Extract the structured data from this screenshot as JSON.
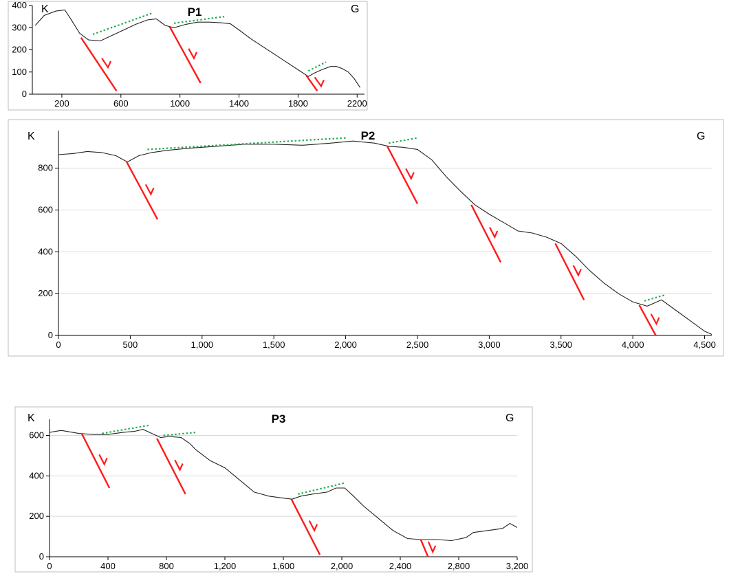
{
  "chart_data": [
    {
      "type": "line",
      "title": "P1",
      "start_label": "K",
      "end_label": "G",
      "xlim": [
        0,
        2250
      ],
      "ylim": [
        0,
        400
      ],
      "xticks": [
        200,
        600,
        1000,
        1400,
        1800,
        2200
      ],
      "yticks": [
        0,
        100,
        200,
        300,
        400
      ],
      "grid": false,
      "series": [
        {
          "x": [
            20,
            80,
            160,
            220,
            260,
            320,
            380,
            460,
            540,
            620,
            700,
            780,
            840,
            900,
            960,
            1040,
            1120,
            1200,
            1280,
            1340,
            1400,
            1480,
            1560,
            1640,
            1720,
            1800,
            1870,
            1910,
            1960,
            2020,
            2060,
            2100,
            2140,
            2180,
            2220
          ],
          "y": [
            310,
            355,
            375,
            380,
            340,
            275,
            245,
            240,
            265,
            290,
            315,
            335,
            340,
            310,
            300,
            315,
            325,
            325,
            322,
            318,
            290,
            250,
            215,
            180,
            145,
            110,
            80,
            95,
            110,
            125,
            125,
            115,
            100,
            70,
            30
          ]
        }
      ],
      "faults": [
        {
          "x1": 330,
          "y1": 255,
          "x2": 570,
          "y2": 15
        },
        {
          "x1": 930,
          "y1": 305,
          "x2": 1140,
          "y2": 50
        },
        {
          "x1": 1855,
          "y1": 85,
          "x2": 1930,
          "y2": 15
        }
      ],
      "trend_lines": [
        {
          "x1": 410,
          "y1": 270,
          "x2": 810,
          "y2": 365
        },
        {
          "x1": 960,
          "y1": 320,
          "x2": 1300,
          "y2": 350
        },
        {
          "x1": 1870,
          "y1": 105,
          "x2": 1990,
          "y2": 145
        }
      ]
    },
    {
      "type": "line",
      "title": "P2",
      "start_label": "K",
      "end_label": "G",
      "xlim": [
        0,
        4550
      ],
      "ylim": [
        0,
        980
      ],
      "xticks": [
        "0",
        "500",
        "1,000",
        "1,500",
        "2,000",
        "2,500",
        "3,000",
        "3,500",
        "4,000",
        "4,500"
      ],
      "xtick_values": [
        0,
        500,
        1000,
        1500,
        2000,
        2500,
        3000,
        3500,
        4000,
        4500
      ],
      "yticks": [
        0,
        200,
        400,
        600,
        800
      ],
      "grid": true,
      "series": [
        {
          "x": [
            0,
            100,
            200,
            300,
            400,
            480,
            560,
            650,
            750,
            900,
            1100,
            1300,
            1500,
            1700,
            1900,
            2050,
            2200,
            2300,
            2400,
            2500,
            2600,
            2700,
            2800,
            2900,
            3000,
            3100,
            3200,
            3300,
            3400,
            3500,
            3600,
            3700,
            3800,
            3900,
            4000,
            4100,
            4200,
            4300,
            4400,
            4500,
            4550
          ],
          "y": [
            865,
            870,
            880,
            875,
            860,
            830,
            860,
            875,
            885,
            895,
            905,
            915,
            915,
            910,
            920,
            930,
            920,
            905,
            900,
            890,
            840,
            760,
            690,
            625,
            580,
            540,
            500,
            490,
            470,
            440,
            380,
            310,
            250,
            200,
            160,
            140,
            170,
            120,
            70,
            20,
            5
          ]
        }
      ],
      "faults": [
        {
          "x1": 475,
          "y1": 830,
          "x2": 690,
          "y2": 555
        },
        {
          "x1": 2290,
          "y1": 905,
          "x2": 2500,
          "y2": 630
        },
        {
          "x1": 2875,
          "y1": 625,
          "x2": 3080,
          "y2": 350
        },
        {
          "x1": 3460,
          "y1": 440,
          "x2": 3660,
          "y2": 170
        },
        {
          "x1": 4045,
          "y1": 145,
          "x2": 4160,
          "y2": 0
        }
      ],
      "trend_lines": [
        {
          "x1": 620,
          "y1": 890,
          "x2": 2000,
          "y2": 945
        },
        {
          "x1": 2300,
          "y1": 920,
          "x2": 2500,
          "y2": 945
        },
        {
          "x1": 4080,
          "y1": 165,
          "x2": 4230,
          "y2": 195
        }
      ]
    },
    {
      "type": "line",
      "title": "P3",
      "start_label": "K",
      "end_label": "G",
      "xlim": [
        0,
        3200
      ],
      "ylim": [
        0,
        680
      ],
      "xticks": [
        "0",
        "400",
        "800",
        "1,200",
        "1,600",
        "2,000",
        "2,400",
        "2,800",
        "3,200"
      ],
      "xtick_values": [
        0,
        400,
        800,
        1200,
        1600,
        2000,
        2400,
        2800,
        3200
      ],
      "yticks": [
        0,
        200,
        400,
        600
      ],
      "grid": true,
      "series": [
        {
          "x": [
            0,
            80,
            200,
            300,
            400,
            500,
            580,
            640,
            700,
            760,
            820,
            900,
            960,
            1000,
            1100,
            1200,
            1300,
            1400,
            1500,
            1600,
            1660,
            1720,
            1800,
            1900,
            1960,
            2020,
            2080,
            2150,
            2250,
            2350,
            2450,
            2540,
            2650,
            2750,
            2850,
            2900,
            3000,
            3100,
            3150,
            3200
          ],
          "y": [
            615,
            625,
            610,
            605,
            605,
            615,
            620,
            630,
            610,
            590,
            595,
            590,
            560,
            530,
            475,
            440,
            380,
            320,
            300,
            290,
            285,
            300,
            310,
            320,
            340,
            340,
            300,
            250,
            190,
            130,
            90,
            85,
            85,
            80,
            95,
            120,
            130,
            140,
            165,
            145
          ]
        }
      ],
      "faults": [
        {
          "x1": 220,
          "y1": 610,
          "x2": 410,
          "y2": 340
        },
        {
          "x1": 735,
          "y1": 585,
          "x2": 930,
          "y2": 310
        },
        {
          "x1": 1655,
          "y1": 285,
          "x2": 1850,
          "y2": 10
        },
        {
          "x1": 2540,
          "y1": 85,
          "x2": 2590,
          "y2": 0
        }
      ],
      "trend_lines": [
        {
          "x1": 360,
          "y1": 610,
          "x2": 680,
          "y2": 650
        },
        {
          "x1": 780,
          "y1": 600,
          "x2": 1000,
          "y2": 615
        },
        {
          "x1": 1700,
          "y1": 310,
          "x2": 2020,
          "y2": 365
        }
      ]
    }
  ]
}
